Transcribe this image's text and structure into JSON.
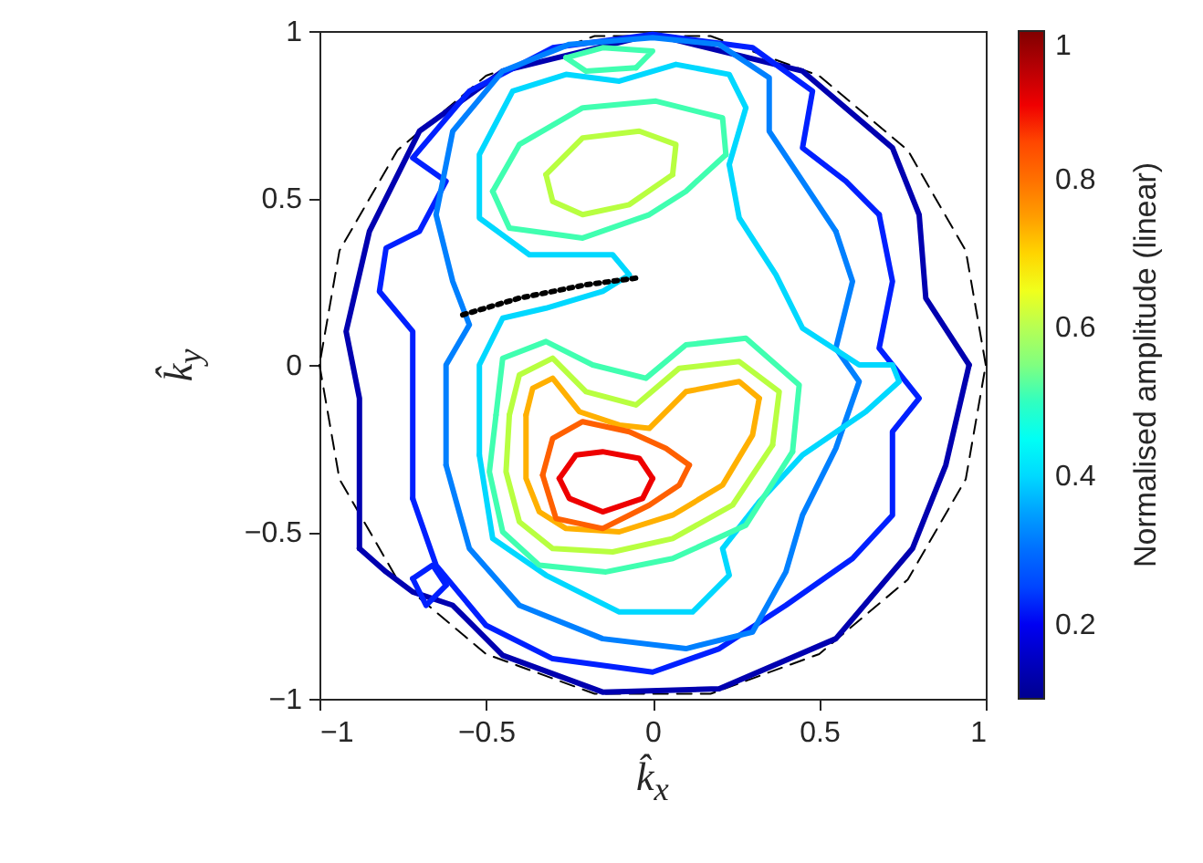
{
  "chart_data": {
    "type": "line",
    "xlabel": "k̂$_{x}$",
    "ylabel": "k̂$_{y}$",
    "clabel": "Normalised amplitude (linear)",
    "xlim": [
      -1,
      1
    ],
    "ylim": [
      -1,
      1
    ],
    "xticks": [
      -1,
      -0.5,
      0,
      0.5,
      1
    ],
    "yticks": [
      -1,
      -0.5,
      0,
      0.5,
      1
    ],
    "clim": [
      0.1,
      1
    ],
    "cticks": [
      0.2,
      0.4,
      0.6,
      0.8,
      1
    ],
    "grid": false,
    "series": [
      {
        "color": "#000000",
        "line_style": "dashed",
        "x": [
          1,
          0.94,
          0.766,
          0.5,
          0.174,
          -0.174,
          -0.5,
          -0.766,
          -0.94,
          -1,
          -0.94,
          -0.766,
          -0.5,
          -0.174,
          0.174,
          0.5,
          0.766,
          0.94,
          1
        ],
        "values": [
          0,
          0.342,
          0.643,
          0.866,
          0.985,
          0.985,
          0.866,
          0.643,
          0.342,
          0,
          -0.342,
          -0.643,
          -0.866,
          -0.985,
          -0.985,
          -0.866,
          -0.643,
          -0.342,
          0
        ]
      },
      {
        "color": "#0000b0",
        "x": [
          -0.88,
          -0.88,
          -0.92,
          -0.85,
          -0.7,
          -0.45,
          0,
          0.45,
          0.72,
          0.8,
          0.82,
          0.95,
          0.88,
          0.78,
          0.55,
          0.2,
          -0.15,
          -0.45,
          -0.6,
          -0.72,
          -0.8,
          -0.88
        ],
        "values": [
          -0.55,
          -0.1,
          0.1,
          0.4,
          0.7,
          0.88,
          0.99,
          0.88,
          0.65,
          0.45,
          0.2,
          0,
          -0.3,
          -0.55,
          -0.82,
          -0.97,
          -0.98,
          -0.87,
          -0.72,
          -0.68,
          -0.62,
          -0.55
        ]
      },
      {
        "color": "#0020ff",
        "x": [
          -0.72,
          -0.72,
          -0.82,
          -0.8,
          -0.7,
          -0.62,
          -0.72,
          -0.55,
          -0.3,
          0,
          0.3,
          0.48,
          0.45,
          0.58,
          0.68,
          0.72,
          0.68,
          0.8,
          0.72,
          0.72,
          0.6,
          0.4,
          0.2,
          0,
          -0.3,
          -0.5,
          -0.65,
          -0.72
        ],
        "values": [
          -0.4,
          0.1,
          0.22,
          0.35,
          0.4,
          0.55,
          0.62,
          0.82,
          0.95,
          0.99,
          0.95,
          0.82,
          0.65,
          0.55,
          0.45,
          0.25,
          0.05,
          -0.1,
          -0.2,
          -0.45,
          -0.58,
          -0.72,
          -0.85,
          -0.92,
          -0.88,
          -0.78,
          -0.6,
          -0.4
        ]
      },
      {
        "color": "#0020ff",
        "x": [
          -0.72,
          -0.66,
          -0.62,
          -0.68,
          -0.72
        ],
        "values": [
          -0.64,
          -0.6,
          -0.66,
          -0.72,
          -0.64
        ]
      },
      {
        "color": "#0080ff",
        "x": [
          -0.62,
          -0.62,
          -0.55,
          -0.6,
          -0.65,
          -0.6,
          -0.45,
          -0.25,
          0,
          0.2,
          0.35,
          0.35,
          0.45,
          0.55,
          0.6,
          0.55,
          0.62,
          0.55,
          0.45,
          0.4,
          0.3,
          0.1,
          -0.15,
          -0.4,
          -0.55,
          -0.62
        ],
        "values": [
          -0.3,
          0,
          0.12,
          0.25,
          0.45,
          0.7,
          0.88,
          0.96,
          0.98,
          0.96,
          0.86,
          0.7,
          0.55,
          0.4,
          0.25,
          0.05,
          -0.05,
          -0.25,
          -0.45,
          -0.62,
          -0.8,
          -0.85,
          -0.82,
          -0.72,
          -0.55,
          -0.3
        ]
      },
      {
        "color": "#00d8ff",
        "x": [
          -0.52,
          -0.52,
          -0.45,
          -0.32,
          -0.15,
          -0.07,
          -0.12,
          -0.37,
          -0.52,
          -0.52,
          -0.42,
          -0.26,
          -0.1,
          0.07,
          0.23,
          0.28,
          0.23,
          0.26,
          0.37,
          0.45,
          0.62,
          0.72,
          0.74,
          0.64,
          0.45,
          0.32,
          0.21,
          0.23,
          0.12,
          -0.1,
          -0.32,
          -0.48,
          -0.52
        ],
        "values": [
          -0.27,
          0,
          0.14,
          0.17,
          0.22,
          0.27,
          0.33,
          0.33,
          0.44,
          0.63,
          0.82,
          0.87,
          0.85,
          0.9,
          0.87,
          0.77,
          0.6,
          0.44,
          0.27,
          0.11,
          0,
          0,
          -0.05,
          -0.14,
          -0.27,
          -0.41,
          -0.55,
          -0.63,
          -0.74,
          -0.74,
          -0.63,
          -0.52,
          -0.27
        ]
      },
      {
        "color": "#40ffb0",
        "x": [
          -0.47,
          -0.45,
          -0.32,
          -0.18,
          -0.02,
          0.1,
          0.28,
          0.44,
          0.42,
          0.28,
          0.06,
          -0.14,
          -0.34,
          -0.45,
          -0.49,
          -0.47
        ],
        "values": [
          -0.15,
          0.02,
          0.07,
          0,
          -0.04,
          0.06,
          0.08,
          -0.06,
          -0.26,
          -0.48,
          -0.58,
          -0.62,
          -0.6,
          -0.5,
          -0.32,
          -0.15
        ]
      },
      {
        "color": "#40ffb0",
        "x": [
          -0.48,
          -0.4,
          -0.21,
          0.01,
          0.21,
          0.22,
          0.1,
          -0.01,
          -0.21,
          -0.43,
          -0.48
        ],
        "values": [
          0.52,
          0.66,
          0.77,
          0.79,
          0.74,
          0.63,
          0.52,
          0.45,
          0.38,
          0.41,
          0.52
        ]
      },
      {
        "color": "#40ffb0",
        "x": [
          -0.26,
          -0.15,
          0,
          -0.05,
          -0.2,
          -0.26
        ],
        "values": [
          0.92,
          0.95,
          0.94,
          0.89,
          0.88,
          0.92
        ]
      },
      {
        "color": "#b8ff40",
        "x": [
          -0.43,
          -0.4,
          -0.3,
          -0.2,
          -0.05,
          0.08,
          0.26,
          0.38,
          0.36,
          0.24,
          0.06,
          -0.12,
          -0.3,
          -0.4,
          -0.44,
          -0.43
        ],
        "values": [
          -0.15,
          -0.03,
          0.02,
          -0.08,
          -0.12,
          -0.01,
          0.01,
          -0.08,
          -0.24,
          -0.42,
          -0.52,
          -0.56,
          -0.55,
          -0.47,
          -0.32,
          -0.15
        ]
      },
      {
        "color": "#b8ff40",
        "x": [
          -0.32,
          -0.21,
          -0.04,
          0.07,
          0.06,
          -0.07,
          -0.21,
          -0.3,
          -0.32
        ],
        "values": [
          0.57,
          0.68,
          0.7,
          0.66,
          0.57,
          0.48,
          0.45,
          0.49,
          0.57
        ]
      },
      {
        "color": "#ffb000",
        "x": [
          -0.38,
          -0.36,
          -0.3,
          -0.22,
          -0.1,
          -0.01,
          0.1,
          0.26,
          0.32,
          0.3,
          0.21,
          0.06,
          -0.1,
          -0.26,
          -0.34,
          -0.38,
          -0.38
        ],
        "values": [
          -0.15,
          -0.07,
          -0.04,
          -0.14,
          -0.18,
          -0.19,
          -0.08,
          -0.05,
          -0.1,
          -0.21,
          -0.36,
          -0.45,
          -0.5,
          -0.49,
          -0.44,
          -0.34,
          -0.15
        ]
      },
      {
        "color": "#ff6000",
        "x": [
          -0.33,
          -0.3,
          -0.21,
          -0.07,
          0.04,
          0.11,
          0.08,
          -0.01,
          -0.15,
          -0.29,
          -0.33
        ],
        "values": [
          -0.33,
          -0.22,
          -0.17,
          -0.2,
          -0.25,
          -0.3,
          -0.36,
          -0.42,
          -0.49,
          -0.46,
          -0.33
        ]
      },
      {
        "color": "#ee0000",
        "x": [
          -0.28,
          -0.23,
          -0.15,
          -0.04,
          0,
          -0.03,
          -0.15,
          -0.25,
          -0.28
        ],
        "values": [
          -0.34,
          -0.27,
          -0.26,
          -0.28,
          -0.34,
          -0.4,
          -0.44,
          -0.4,
          -0.34
        ]
      },
      {
        "color": "#000000",
        "line_style": "dotted",
        "x": [
          -0.57,
          -0.4,
          -0.2,
          -0.05
        ],
        "values": [
          0.15,
          0.2,
          0.24,
          0.26
        ]
      }
    ]
  }
}
